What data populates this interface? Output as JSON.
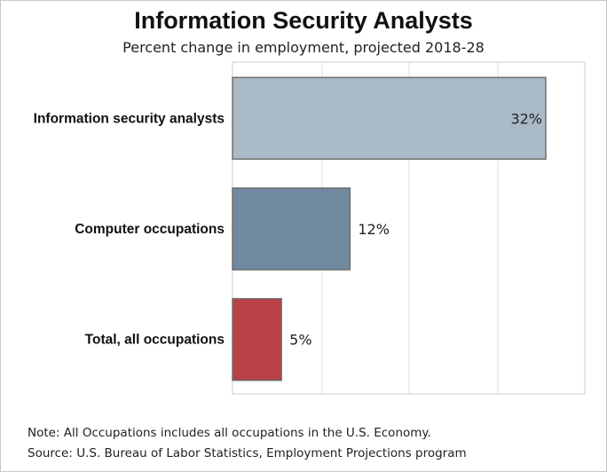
{
  "chart_data": {
    "type": "bar",
    "orientation": "horizontal",
    "title": "Information Security Analysts",
    "subtitle": "Percent change in employment, projected 2018-28",
    "categories": [
      "Information security analysts",
      "Computer occupations",
      "Total, all occupations"
    ],
    "values": [
      32,
      12,
      5
    ],
    "value_labels": [
      "32%",
      "12%",
      "5%"
    ],
    "colors": [
      "#aabbc7",
      "#6f8aa0",
      "#b84145"
    ],
    "xlim": [
      0,
      36
    ],
    "grid": true,
    "xlabel": "",
    "ylabel": ""
  },
  "footer": {
    "note": "Note: All Occupations includes all occupations in the U.S. Economy.",
    "source": "Source: U.S. Bureau of Labor Statistics, Employment Projections program"
  }
}
